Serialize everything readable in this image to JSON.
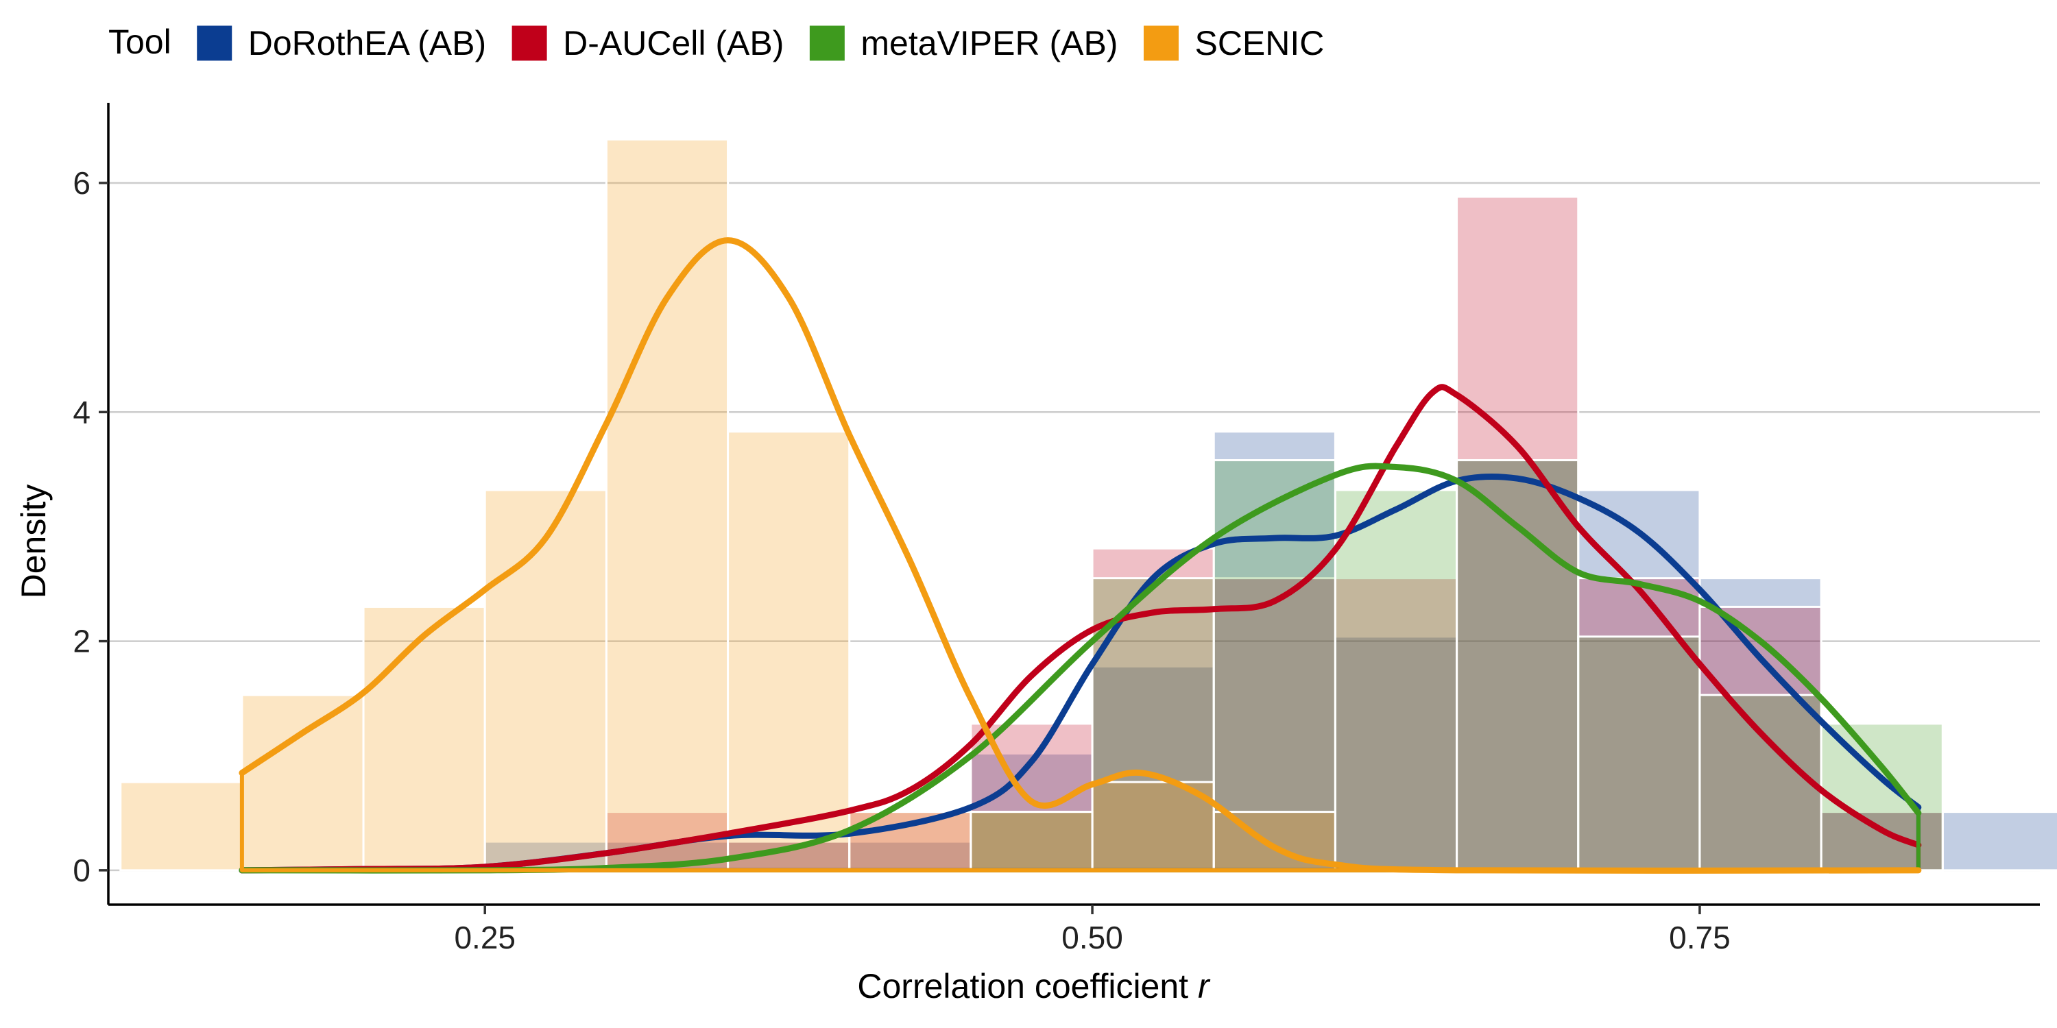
{
  "chart_data": {
    "type": "histogram-density",
    "xlabel": "Correlation coefficient ",
    "xlabel_italic": "r",
    "ylabel": "Density",
    "xlim": [
      0.095,
      0.89
    ],
    "ylim": [
      -0.3,
      6.7
    ],
    "x_ticks": [
      0.25,
      0.5,
      0.75
    ],
    "x_tick_labels": [
      "0.25",
      "0.50",
      "0.75"
    ],
    "y_ticks": [
      0,
      2,
      4,
      6
    ],
    "y_tick_labels": [
      "0",
      "2",
      "4",
      "6"
    ],
    "grid": "horizontal major",
    "bin_width": 0.05,
    "density_range": [
      0.15,
      0.84
    ],
    "legend": {
      "position": "top-left",
      "title": "Tool",
      "entries": [
        "DoRothEA (AB)",
        "D-AUCell (AB)",
        "metaVIPER (AB)",
        "SCENIC"
      ]
    },
    "series": [
      {
        "name": "DoRothEA (AB)",
        "color": "#0b3d91",
        "bins": [
          [
            0.275,
            0.25
          ],
          [
            0.325,
            0.25
          ],
          [
            0.375,
            0.25
          ],
          [
            0.425,
            0.25
          ],
          [
            0.475,
            1.02
          ],
          [
            0.525,
            1.78
          ],
          [
            0.575,
            3.83
          ],
          [
            0.625,
            2.04
          ],
          [
            0.675,
            3.58
          ],
          [
            0.725,
            3.32
          ],
          [
            0.775,
            2.55
          ],
          [
            0.825,
            0.51
          ],
          [
            0.875,
            0.51
          ]
        ],
        "density": [
          [
            0.15,
            0.0
          ],
          [
            0.2,
            0.01
          ],
          [
            0.25,
            0.03
          ],
          [
            0.3,
            0.15
          ],
          [
            0.35,
            0.3
          ],
          [
            0.4,
            0.32
          ],
          [
            0.45,
            0.55
          ],
          [
            0.475,
            0.95
          ],
          [
            0.5,
            1.8
          ],
          [
            0.525,
            2.55
          ],
          [
            0.55,
            2.85
          ],
          [
            0.575,
            2.9
          ],
          [
            0.6,
            2.92
          ],
          [
            0.625,
            3.15
          ],
          [
            0.65,
            3.4
          ],
          [
            0.675,
            3.42
          ],
          [
            0.7,
            3.25
          ],
          [
            0.725,
            2.95
          ],
          [
            0.75,
            2.45
          ],
          [
            0.775,
            1.85
          ],
          [
            0.8,
            1.3
          ],
          [
            0.825,
            0.8
          ],
          [
            0.84,
            0.55
          ]
        ]
      },
      {
        "name": "D-AUCell (AB)",
        "color": "#c0001a",
        "bins": [
          [
            0.325,
            0.51
          ],
          [
            0.375,
            0.25
          ],
          [
            0.425,
            0.51
          ],
          [
            0.475,
            1.28
          ],
          [
            0.525,
            2.81
          ],
          [
            0.575,
            2.55
          ],
          [
            0.625,
            2.55
          ],
          [
            0.675,
            5.88
          ],
          [
            0.725,
            2.55
          ],
          [
            0.775,
            2.3
          ],
          [
            0.825,
            0.51
          ]
        ],
        "density": [
          [
            0.15,
            0.0
          ],
          [
            0.2,
            0.01
          ],
          [
            0.25,
            0.03
          ],
          [
            0.3,
            0.15
          ],
          [
            0.35,
            0.32
          ],
          [
            0.4,
            0.52
          ],
          [
            0.425,
            0.7
          ],
          [
            0.45,
            1.1
          ],
          [
            0.475,
            1.7
          ],
          [
            0.5,
            2.1
          ],
          [
            0.525,
            2.25
          ],
          [
            0.55,
            2.28
          ],
          [
            0.575,
            2.35
          ],
          [
            0.6,
            2.8
          ],
          [
            0.625,
            3.7
          ],
          [
            0.64,
            4.17
          ],
          [
            0.65,
            4.15
          ],
          [
            0.675,
            3.7
          ],
          [
            0.7,
            3.0
          ],
          [
            0.725,
            2.45
          ],
          [
            0.75,
            1.8
          ],
          [
            0.775,
            1.2
          ],
          [
            0.8,
            0.7
          ],
          [
            0.825,
            0.35
          ],
          [
            0.84,
            0.22
          ]
        ]
      },
      {
        "name": "metaVIPER (AB)",
        "color": "#3e9a1e",
        "bins": [
          [
            0.475,
            0.51
          ],
          [
            0.525,
            2.55
          ],
          [
            0.575,
            3.58
          ],
          [
            0.625,
            3.32
          ],
          [
            0.675,
            3.58
          ],
          [
            0.725,
            2.04
          ],
          [
            0.775,
            1.53
          ],
          [
            0.825,
            1.28
          ]
        ],
        "density": [
          [
            0.15,
            0.0
          ],
          [
            0.25,
            0.0
          ],
          [
            0.3,
            0.02
          ],
          [
            0.35,
            0.1
          ],
          [
            0.4,
            0.35
          ],
          [
            0.45,
            1.0
          ],
          [
            0.5,
            2.0
          ],
          [
            0.55,
            2.9
          ],
          [
            0.6,
            3.45
          ],
          [
            0.625,
            3.52
          ],
          [
            0.65,
            3.4
          ],
          [
            0.675,
            3.0
          ],
          [
            0.7,
            2.6
          ],
          [
            0.725,
            2.5
          ],
          [
            0.75,
            2.35
          ],
          [
            0.775,
            2.0
          ],
          [
            0.8,
            1.5
          ],
          [
            0.825,
            0.9
          ],
          [
            0.84,
            0.5
          ]
        ]
      },
      {
        "name": "SCENIC",
        "color": "#f39c12",
        "bins": [
          [
            0.125,
            0.77
          ],
          [
            0.175,
            1.53
          ],
          [
            0.225,
            2.3
          ],
          [
            0.275,
            3.32
          ],
          [
            0.325,
            6.38
          ],
          [
            0.375,
            3.83
          ],
          [
            0.425,
            0.51
          ],
          [
            0.475,
            0.51
          ],
          [
            0.525,
            0.77
          ],
          [
            0.575,
            0.51
          ]
        ],
        "density": [
          [
            0.15,
            0.85
          ],
          [
            0.175,
            1.2
          ],
          [
            0.2,
            1.55
          ],
          [
            0.225,
            2.05
          ],
          [
            0.25,
            2.45
          ],
          [
            0.275,
            2.9
          ],
          [
            0.3,
            3.9
          ],
          [
            0.325,
            5.0
          ],
          [
            0.35,
            5.5
          ],
          [
            0.375,
            5.0
          ],
          [
            0.4,
            3.8
          ],
          [
            0.425,
            2.7
          ],
          [
            0.45,
            1.5
          ],
          [
            0.475,
            0.6
          ],
          [
            0.5,
            0.75
          ],
          [
            0.52,
            0.85
          ],
          [
            0.545,
            0.65
          ],
          [
            0.575,
            0.2
          ],
          [
            0.6,
            0.05
          ],
          [
            0.65,
            0.0
          ],
          [
            0.84,
            0.0
          ]
        ]
      }
    ]
  }
}
